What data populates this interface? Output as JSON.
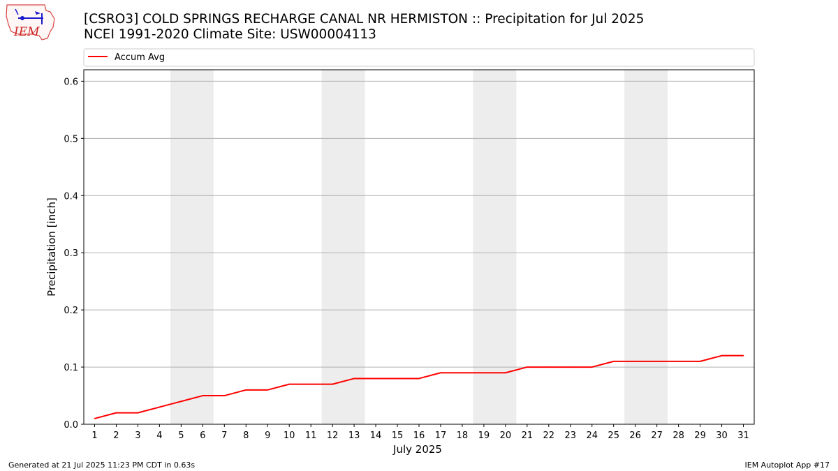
{
  "header": {
    "title_line1": "[CSRO3] COLD SPRINGS RECHARGE CANAL NR HERMISTON :: Precipitation for Jul 2025",
    "title_line2": "NCEI 1991-2020 Climate Site: USW00004113"
  },
  "logo": {
    "text": "IEM"
  },
  "footer": {
    "left": "Generated at 21 Jul 2025 11:23 PM CDT in 0.63s",
    "right": "IEM Autoplot App #17"
  },
  "chart_data": {
    "type": "line",
    "xlabel": "July 2025",
    "ylabel": "Precipitation [inch]",
    "ylim": [
      0,
      0.62
    ],
    "yticks": [
      0.0,
      0.1,
      0.2,
      0.3,
      0.4,
      0.5,
      0.6
    ],
    "ytick_labels": [
      "0.0",
      "0.1",
      "0.2",
      "0.3",
      "0.4",
      "0.5",
      "0.6"
    ],
    "x": [
      1,
      2,
      3,
      4,
      5,
      6,
      7,
      8,
      9,
      10,
      11,
      12,
      13,
      14,
      15,
      16,
      17,
      18,
      19,
      20,
      21,
      22,
      23,
      24,
      25,
      26,
      27,
      28,
      29,
      30,
      31
    ],
    "xtick_labels": [
      "1",
      "2",
      "3",
      "4",
      "5",
      "6",
      "7",
      "8",
      "9",
      "10",
      "11",
      "12",
      "13",
      "14",
      "15",
      "16",
      "17",
      "18",
      "19",
      "20",
      "21",
      "22",
      "23",
      "24",
      "25",
      "26",
      "27",
      "28",
      "29",
      "30",
      "31"
    ],
    "weekend_shading": [
      [
        5,
        6
      ],
      [
        12,
        13
      ],
      [
        19,
        20
      ],
      [
        26,
        27
      ]
    ],
    "grid": "horizontal",
    "legend_position": "top",
    "series": [
      {
        "name": "Accum Avg",
        "color": "#ff0000",
        "values": [
          0.01,
          0.02,
          0.02,
          0.03,
          0.04,
          0.05,
          0.05,
          0.06,
          0.06,
          0.07,
          0.07,
          0.07,
          0.08,
          0.08,
          0.08,
          0.08,
          0.09,
          0.09,
          0.09,
          0.09,
          0.1,
          0.1,
          0.1,
          0.1,
          0.11,
          0.11,
          0.11,
          0.11,
          0.11,
          0.12,
          0.12
        ]
      }
    ]
  }
}
